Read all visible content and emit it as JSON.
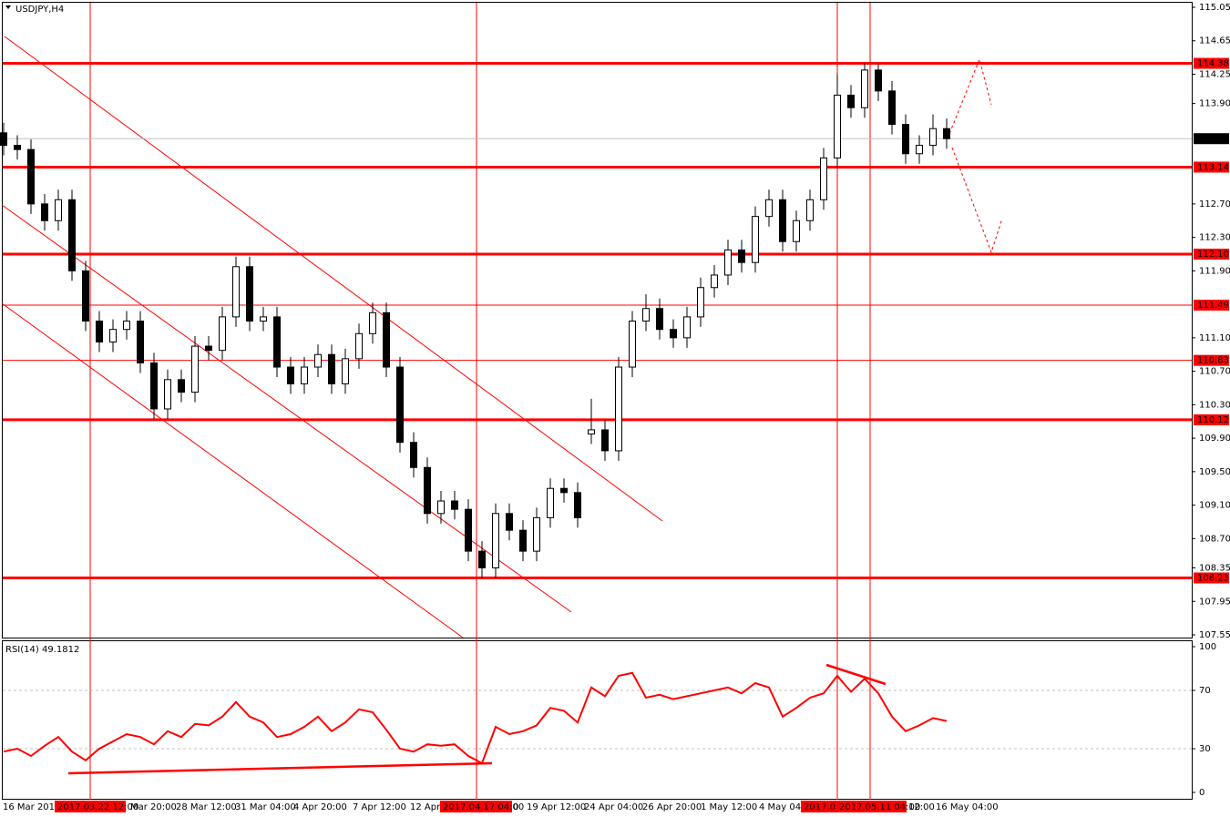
{
  "chart_data": [
    {
      "type": "candlestick",
      "title": "USDJPY,H4",
      "color": "#000000",
      "open": [
        113.55,
        113.4,
        113.35,
        112.7,
        112.5,
        112.75,
        111.9,
        111.3,
        111.05,
        111.2,
        111.3,
        110.8,
        110.25,
        110.6,
        110.45,
        111.0,
        110.95,
        111.35,
        111.95,
        111.3,
        111.35,
        110.75,
        110.55,
        110.75,
        110.9,
        110.55,
        110.85,
        111.15,
        111.4,
        110.75,
        109.85,
        109.55,
        109.0,
        109.15,
        109.05,
        108.55,
        108.35,
        109.0,
        108.8,
        108.55,
        108.95,
        109.3,
        109.25,
        109.95,
        110.0,
        109.75,
        110.75,
        111.3,
        111.45,
        111.2,
        111.1,
        111.35,
        111.7,
        111.85,
        112.15,
        112.0,
        112.55,
        112.75,
        112.25,
        112.5,
        112.75,
        113.25,
        114.0,
        113.85,
        114.3,
        114.05,
        113.65,
        113.3,
        113.4,
        113.6
      ],
      "high": [
        113.67,
        113.52,
        113.47,
        112.82,
        112.87,
        112.87,
        112.02,
        111.42,
        111.32,
        111.42,
        111.42,
        110.92,
        110.72,
        110.72,
        111.12,
        111.12,
        111.47,
        112.07,
        112.07,
        111.47,
        111.47,
        110.87,
        110.87,
        111.02,
        111.02,
        110.97,
        111.27,
        111.52,
        111.52,
        110.87,
        109.97,
        109.67,
        109.27,
        109.27,
        109.17,
        108.67,
        109.12,
        109.12,
        108.92,
        109.07,
        109.42,
        109.42,
        109.37,
        110.37,
        110.12,
        110.87,
        111.42,
        111.62,
        111.57,
        111.32,
        111.47,
        111.82,
        111.97,
        112.27,
        112.27,
        112.67,
        112.87,
        112.87,
        112.62,
        112.87,
        113.37,
        114.25,
        114.12,
        114.38,
        114.37,
        114.17,
        113.77,
        113.52,
        113.77,
        113.72
      ],
      "low": [
        113.28,
        113.23,
        112.58,
        112.38,
        112.38,
        111.78,
        111.18,
        110.93,
        110.93,
        111.08,
        110.68,
        110.13,
        110.13,
        110.33,
        110.33,
        110.83,
        110.83,
        111.23,
        111.18,
        111.18,
        110.63,
        110.43,
        110.43,
        110.63,
        110.43,
        110.43,
        110.73,
        111.03,
        110.63,
        109.73,
        109.43,
        108.88,
        108.88,
        108.93,
        108.43,
        108.23,
        108.23,
        108.68,
        108.43,
        108.43,
        108.83,
        109.13,
        108.83,
        109.83,
        109.63,
        109.63,
        110.63,
        111.18,
        111.08,
        110.98,
        110.98,
        111.23,
        111.58,
        111.73,
        111.88,
        111.88,
        112.43,
        112.13,
        112.13,
        112.38,
        112.63,
        113.13,
        113.73,
        113.73,
        113.93,
        113.53,
        113.18,
        113.18,
        113.28,
        113.36
      ],
      "close": [
        113.4,
        113.35,
        112.7,
        112.5,
        112.75,
        111.9,
        111.3,
        111.05,
        111.2,
        111.3,
        110.8,
        110.25,
        110.6,
        110.45,
        111.0,
        110.95,
        111.35,
        111.95,
        111.3,
        111.35,
        110.75,
        110.55,
        110.75,
        110.9,
        110.55,
        110.85,
        111.15,
        111.4,
        110.75,
        109.85,
        109.55,
        109.0,
        109.15,
        109.05,
        108.55,
        108.35,
        109.0,
        108.8,
        108.55,
        108.95,
        109.3,
        109.25,
        108.95,
        110.0,
        109.75,
        110.75,
        111.3,
        111.45,
        111.2,
        111.1,
        111.35,
        111.7,
        111.85,
        112.15,
        112.0,
        112.55,
        112.75,
        112.25,
        112.5,
        112.75,
        113.25,
        114.0,
        113.85,
        114.3,
        114.05,
        113.65,
        113.3,
        113.4,
        113.6,
        113.48
      ],
      "ylim": [
        107.55,
        115.05
      ],
      "yticks": [
        115.05,
        114.65,
        114.25,
        {
          "value": 113.9,
          "label": "113.90"
        },
        {
          "value": 112.7,
          "label": "112.70"
        },
        {
          "value": 112.3,
          "label": "112.30"
        },
        {
          "value": 111.9,
          "label": "111.90"
        },
        {
          "value": 111.1,
          "label": "111.10"
        },
        {
          "value": 110.7,
          "label": "110.70"
        },
        {
          "value": 110.3,
          "label": "110.30"
        },
        {
          "value": 109.9,
          "label": "109.90"
        },
        {
          "value": 109.5,
          "label": "109.50"
        },
        {
          "value": 109.1,
          "label": "109.10"
        },
        {
          "value": 108.7,
          "label": "108.70"
        },
        108.35,
        107.95,
        107.55
      ],
      "levels": [
        114.38,
        113.14,
        {
          "value": 112.1,
          "label": "112.10"
        },
        111.49,
        110.83,
        110.12,
        108.23
      ],
      "level_color": "#ff0000",
      "current_price": 113.48,
      "x_labels": [
        "16 Mar 2017",
        "Mar 20:00",
        "28 Mar 12:00",
        "31 Mar 04:00",
        "4 Apr 20:00",
        "7 Apr 12:00",
        "12 Apr",
        "0",
        "19 Apr 12:00",
        "24 Apr 04:00",
        "26 Apr 20:00",
        "1 May 12:00",
        "4 May 04:",
        "12:00",
        "16 May 04:00"
      ],
      "marked_times": [
        "2017.03.22 12:00",
        "2017.04.17 04:00",
        "2017.05",
        "2017.05.11 04:00"
      ]
    },
    {
      "type": "line",
      "title": "RSI(14) 49.1812",
      "color": "#ff0000",
      "values": [
        28,
        30,
        25,
        32,
        38,
        28,
        22,
        30,
        35,
        40,
        38,
        33,
        42,
        38,
        47,
        46,
        52,
        62,
        52,
        48,
        38,
        40,
        45,
        52,
        42,
        48,
        57,
        55,
        43,
        30,
        28,
        33,
        32,
        33,
        25,
        20,
        45,
        40,
        42,
        46,
        58,
        56,
        48,
        72,
        66,
        80,
        82,
        65,
        67,
        64,
        66,
        68,
        70,
        72,
        68,
        75,
        72,
        52,
        58,
        65,
        68,
        80,
        69,
        78,
        68,
        52,
        42,
        46,
        51,
        49
      ],
      "ylim": [
        0,
        100
      ],
      "yticks": [
        100,
        70,
        30,
        0
      ],
      "levels": [
        70,
        30
      ]
    }
  ]
}
